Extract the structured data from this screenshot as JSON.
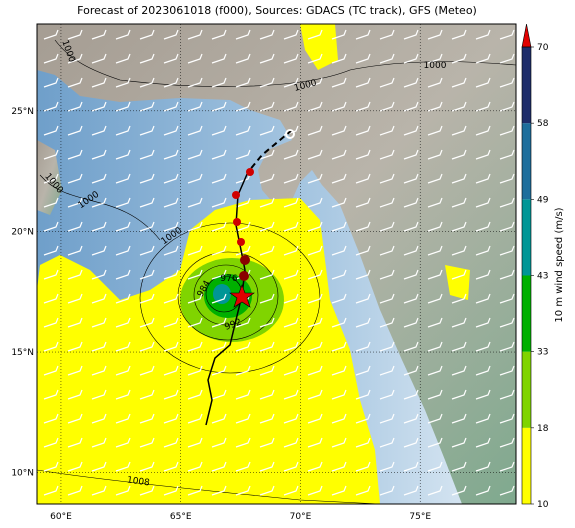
{
  "map": {
    "title": "Forecast of 2023061018 (f000), Sources: GDACS (TC track), GFS (Meteo)",
    "xlim": [
      59,
      79
    ],
    "ylim": [
      8.7,
      28.6
    ],
    "xticks": [
      {
        "value": 60,
        "label": "60°E"
      },
      {
        "value": 65,
        "label": "65°E"
      },
      {
        "value": 70,
        "label": "70°E"
      },
      {
        "value": 75,
        "label": "75°E"
      }
    ],
    "yticks": [
      {
        "value": 10,
        "label": "10°N"
      },
      {
        "value": 15,
        "label": "15°N"
      },
      {
        "value": 20,
        "label": "20°N"
      },
      {
        "value": 25,
        "label": "25°N"
      }
    ],
    "grid": true,
    "contour_labels": [
      "1000",
      "1000",
      "1000",
      "1000",
      "1000",
      "1000",
      "1008",
      "976",
      "984",
      "992"
    ],
    "colorbar": {
      "label": "10 m wind speed (m/s)",
      "ticks": [
        10,
        18,
        33,
        43,
        49,
        58,
        70
      ],
      "colors": [
        "#ffff00",
        "#80d400",
        "#00b000",
        "#009696",
        "#1e6e9c",
        "#1e2d6a"
      ],
      "extend_color": "#e00000"
    }
  }
}
